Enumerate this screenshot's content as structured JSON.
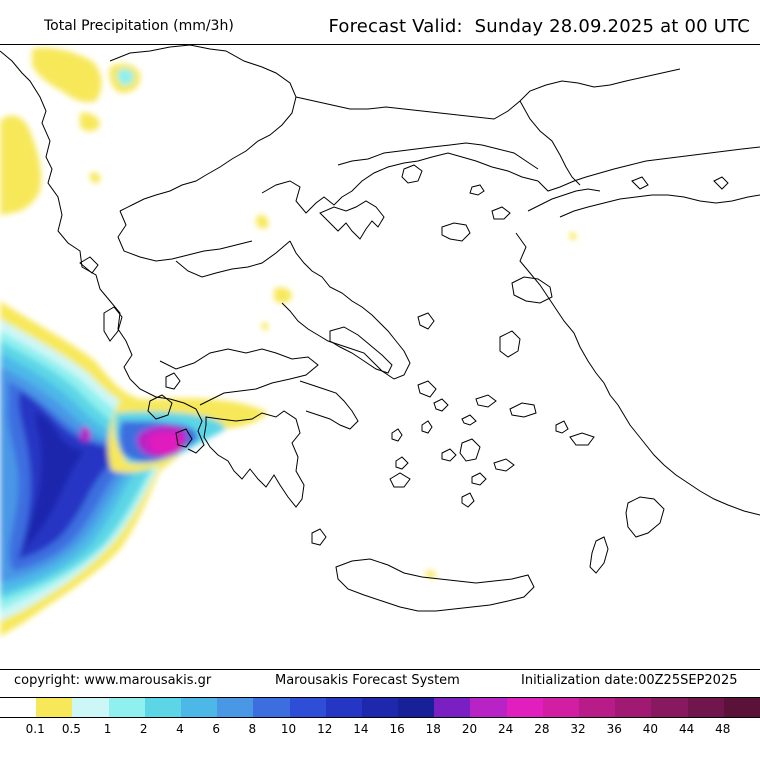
{
  "header": {
    "title": "Total Precipitation (mm/3h)",
    "forecast_label": "Forecast Valid:",
    "forecast_value": "Sunday 28.09.2025 at 00 UTC"
  },
  "footer": {
    "copyright": "copyright: www.marousakis.gr",
    "system": "Marousakis Forecast System",
    "initialization": "Initialization date:00Z25SEP2025"
  },
  "legend": {
    "colors": [
      "#ffffff",
      "#f7e85a",
      "#cdf7f7",
      "#8ff0ef",
      "#5cd6e6",
      "#4db8e8",
      "#4a97e6",
      "#3c6ee0",
      "#2f4ed8",
      "#2536c4",
      "#1d28ad",
      "#182097",
      "#7a1fc2",
      "#b823c5",
      "#e11fbe",
      "#d11ea2",
      "#b81c88",
      "#a01a73",
      "#881860",
      "#70164d",
      "#5a1239"
    ],
    "labels": [
      "0.1",
      "0.5",
      "1",
      "2",
      "4",
      "6",
      "8",
      "10",
      "12",
      "14",
      "16",
      "18",
      "20",
      "24",
      "28",
      "32",
      "36",
      "40",
      "44",
      "48"
    ]
  },
  "map": {
    "precip_colors": {
      "light": "#f7e85a",
      "cyan_pale": "#cdf7f7",
      "cyan": "#8ff0ef",
      "aqua": "#5cd6e6",
      "sky": "#4db8e8",
      "blue_light": "#4a97e6",
      "blue": "#3c6ee0",
      "blue_dark": "#2536c4",
      "navy": "#1d28ad",
      "magenta": "#e11fbe",
      "purple": "#b823c5"
    },
    "coastline_color": "#000000"
  }
}
